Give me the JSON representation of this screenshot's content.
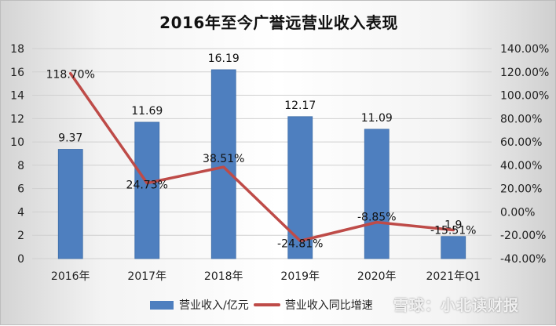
{
  "title": "2016年至今广誉远营业收入表现",
  "chart_data": {
    "type": "bar+line",
    "title": "2016年至今广誉远营业收入表现",
    "categories": [
      "2016年",
      "2017年",
      "2018年",
      "2019年",
      "2020年",
      "2021年Q1"
    ],
    "series": [
      {
        "name": "营业收入/亿元",
        "type": "bar",
        "axis": "left",
        "color": "#4e7fbf",
        "values": [
          9.37,
          11.69,
          16.19,
          12.17,
          11.09,
          1.9
        ],
        "labels": [
          "9.37",
          "11.69",
          "16.19",
          "12.17",
          "11.09",
          "1.9"
        ]
      },
      {
        "name": "营业收入同比增速",
        "type": "line",
        "axis": "right",
        "color": "#be4b48",
        "values": [
          118.7,
          24.73,
          38.51,
          -24.81,
          -8.85,
          -15.51
        ],
        "labels": [
          "118.70%",
          "24.73%",
          "38.51%",
          "-24.81%",
          "-8.85%",
          "-15.51%"
        ]
      }
    ],
    "left_axis": {
      "ylim": [
        0,
        18
      ],
      "ticks": [
        "0",
        "2",
        "4",
        "6",
        "8",
        "10",
        "12",
        "14",
        "16",
        "18"
      ]
    },
    "right_axis": {
      "ylim": [
        -40,
        140
      ],
      "ticks": [
        "-40.00%",
        "-20.00%",
        "0.00%",
        "20.00%",
        "40.00%",
        "60.00%",
        "80.00%",
        "100.00%",
        "120.00%",
        "140.00%"
      ]
    },
    "grid": true,
    "legend_position": "bottom"
  },
  "legend": {
    "bar_label": "营业收入/亿元",
    "line_label": "营业收入同比增速"
  },
  "watermark": "雪球：小北读财报"
}
